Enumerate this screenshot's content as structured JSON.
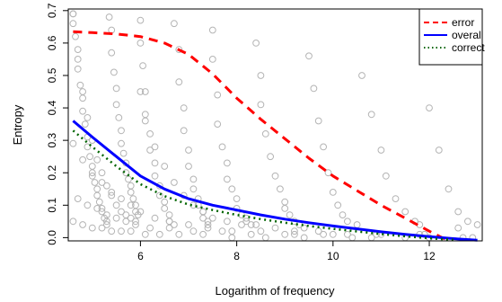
{
  "chart_data": {
    "type": "scatter",
    "title": "",
    "xlabel": "Logarithm of frequency",
    "ylabel": "Entropy",
    "xlim": [
      4.5,
      13.1
    ],
    "ylim": [
      -0.01,
      0.705
    ],
    "xticks": [
      "6",
      "8",
      "10",
      "12"
    ],
    "xtick_values": [
      6,
      8,
      10,
      12
    ],
    "yticks": [
      "0.0",
      "0.1",
      "0.2",
      "0.3",
      "0.4",
      "0.5",
      "0.6",
      "0.7"
    ],
    "ytick_values": [
      0.0,
      0.1,
      0.2,
      0.3,
      0.4,
      0.5,
      0.6,
      0.7
    ],
    "grid": false,
    "legend_position": "top-right",
    "points": {
      "color": "#b4b4b4",
      "marker": "open-circle",
      "x": [
        4.6,
        4.6,
        4.65,
        4.7,
        4.7,
        4.75,
        4.8,
        4.8,
        4.85,
        4.9,
        4.9,
        4.95,
        5.0,
        5.0,
        5.05,
        5.1,
        5.1,
        5.15,
        5.2,
        5.2,
        5.25,
        5.3,
        5.3,
        5.35,
        5.4,
        5.4,
        5.45,
        5.5,
        5.5,
        5.55,
        5.6,
        5.6,
        5.65,
        5.7,
        5.7,
        5.75,
        5.8,
        5.8,
        5.85,
        5.9,
        5.9,
        5.95,
        6.0,
        6.0,
        6.05,
        6.1,
        6.1,
        6.2,
        6.2,
        6.3,
        6.3,
        6.4,
        6.4,
        6.5,
        6.5,
        6.6,
        6.6,
        6.7,
        6.7,
        6.8,
        6.8,
        6.9,
        6.9,
        7.0,
        7.0,
        7.1,
        7.1,
        7.2,
        7.2,
        7.3,
        7.3,
        7.4,
        7.4,
        7.5,
        7.5,
        7.6,
        7.6,
        7.7,
        7.8,
        7.8,
        7.9,
        8.0,
        8.0,
        8.1,
        8.2,
        8.2,
        8.3,
        8.4,
        8.5,
        8.5,
        8.6,
        8.7,
        8.8,
        8.9,
        9.0,
        9.0,
        9.1,
        9.2,
        9.3,
        9.4,
        9.5,
        9.6,
        9.7,
        9.8,
        9.9,
        10.0,
        10.1,
        10.2,
        10.3,
        10.5,
        10.6,
        10.8,
        11.0,
        11.1,
        11.3,
        11.5,
        11.7,
        11.8,
        12.0,
        12.2,
        12.4,
        12.6,
        12.8,
        13.0,
        4.6,
        4.7,
        4.8,
        4.9,
        5.0,
        5.1,
        5.2,
        5.3,
        5.4,
        5.5,
        5.6,
        5.7,
        5.8,
        5.9,
        6.0,
        6.1,
        6.3,
        6.5,
        6.7,
        6.9,
        7.1,
        7.3,
        7.5,
        7.8,
        8.1,
        8.4,
        8.8,
        9.2,
        9.7,
        10.3,
        11.0,
        11.8,
        12.6,
        4.6,
        4.8,
        5.0,
        5.2,
        5.4,
        5.6,
        5.8,
        6.0,
        6.3,
        6.6,
        7.0,
        7.4,
        7.9,
        8.5,
        9.2,
        10.0,
        10.9,
        11.9,
        12.9,
        4.7,
        4.9,
        5.1,
        5.3,
        5.5,
        5.7,
        5.9,
        6.2,
        6.6,
        7.1,
        7.7,
        8.3,
        9.0,
        9.8,
        10.8,
        12.0,
        4.6,
        4.8,
        5.0,
        5.2,
        5.4,
        5.6,
        5.8,
        6.1,
        6.4,
        6.8,
        7.3,
        7.9,
        8.6,
        9.4,
        10.4,
        11.5,
        12.7
      ],
      "y": [
        0.69,
        0.66,
        0.62,
        0.58,
        0.52,
        0.47,
        0.43,
        0.39,
        0.35,
        0.31,
        0.28,
        0.25,
        0.22,
        0.19,
        0.17,
        0.15,
        0.13,
        0.11,
        0.09,
        0.08,
        0.06,
        0.05,
        0.04,
        0.68,
        0.64,
        0.57,
        0.51,
        0.46,
        0.41,
        0.37,
        0.33,
        0.29,
        0.26,
        0.23,
        0.2,
        0.18,
        0.16,
        0.14,
        0.12,
        0.1,
        0.08,
        0.07,
        0.67,
        0.6,
        0.53,
        0.45,
        0.38,
        0.32,
        0.27,
        0.23,
        0.19,
        0.16,
        0.13,
        0.11,
        0.09,
        0.07,
        0.05,
        0.04,
        0.66,
        0.58,
        0.48,
        0.4,
        0.33,
        0.27,
        0.22,
        0.18,
        0.15,
        0.12,
        0.1,
        0.08,
        0.06,
        0.05,
        0.04,
        0.64,
        0.55,
        0.44,
        0.35,
        0.28,
        0.23,
        0.18,
        0.15,
        0.12,
        0.09,
        0.07,
        0.06,
        0.05,
        0.04,
        0.6,
        0.5,
        0.41,
        0.32,
        0.25,
        0.19,
        0.15,
        0.11,
        0.09,
        0.07,
        0.05,
        0.04,
        0.03,
        0.56,
        0.46,
        0.36,
        0.28,
        0.2,
        0.14,
        0.1,
        0.07,
        0.05,
        0.04,
        0.5,
        0.38,
        0.27,
        0.19,
        0.12,
        0.08,
        0.05,
        0.04,
        0.4,
        0.27,
        0.15,
        0.08,
        0.05,
        0.04,
        0.69,
        0.55,
        0.45,
        0.37,
        0.3,
        0.24,
        0.2,
        0.16,
        0.13,
        0.1,
        0.08,
        0.07,
        0.06,
        0.05,
        0.45,
        0.36,
        0.28,
        0.22,
        0.17,
        0.13,
        0.1,
        0.08,
        0.06,
        0.05,
        0.04,
        0.04,
        0.03,
        0.02,
        0.02,
        0.01,
        0.01,
        0.01,
        0.03,
        0.29,
        0.24,
        0.2,
        0.17,
        0.14,
        0.12,
        0.1,
        0.08,
        0.06,
        0.05,
        0.04,
        0.03,
        0.02,
        0.02,
        0.01,
        0.01,
        0.01,
        0.01,
        0.0,
        0.12,
        0.1,
        0.09,
        0.07,
        0.06,
        0.05,
        0.04,
        0.03,
        0.03,
        0.02,
        0.02,
        0.01,
        0.01,
        0.01,
        0.0,
        0.0,
        0.05,
        0.04,
        0.03,
        0.03,
        0.02,
        0.02,
        0.02,
        0.01,
        0.01,
        0.01,
        0.01,
        0.0,
        0.0,
        0.0,
        0.0,
        0.0,
        0.0
      ]
    },
    "series": [
      {
        "name": "error",
        "color": "#ff0000",
        "style": "dashed",
        "x": [
          4.6,
          5.0,
          5.5,
          6.0,
          6.5,
          7.0,
          7.5,
          8.0,
          8.5,
          9.0,
          9.5,
          10.0,
          10.5,
          11.0,
          11.5,
          12.0,
          12.4
        ],
        "y": [
          0.635,
          0.632,
          0.628,
          0.62,
          0.6,
          0.565,
          0.505,
          0.43,
          0.365,
          0.305,
          0.245,
          0.19,
          0.145,
          0.1,
          0.06,
          0.02,
          -0.01
        ]
      },
      {
        "name": "overall",
        "color": "#0000ff",
        "style": "solid",
        "x": [
          4.6,
          5.0,
          5.5,
          6.0,
          6.5,
          7.0,
          7.5,
          8.0,
          8.5,
          9.0,
          9.5,
          10.0,
          10.5,
          11.0,
          11.5,
          12.0,
          12.5,
          13.0
        ],
        "y": [
          0.36,
          0.31,
          0.25,
          0.19,
          0.15,
          0.12,
          0.1,
          0.085,
          0.07,
          0.057,
          0.046,
          0.036,
          0.027,
          0.018,
          0.01,
          0.003,
          -0.003,
          -0.008
        ]
      },
      {
        "name": "correct",
        "color": "#006400",
        "style": "dotted",
        "x": [
          4.6,
          5.0,
          5.5,
          6.0,
          6.5,
          7.0,
          7.5,
          8.0,
          8.5,
          9.0,
          9.5,
          10.0,
          10.5,
          11.0,
          11.5,
          12.0,
          12.5
        ],
        "y": [
          0.33,
          0.28,
          0.22,
          0.165,
          0.128,
          0.102,
          0.085,
          0.07,
          0.057,
          0.046,
          0.036,
          0.027,
          0.019,
          0.011,
          0.004,
          -0.002,
          -0.007
        ]
      }
    ]
  }
}
